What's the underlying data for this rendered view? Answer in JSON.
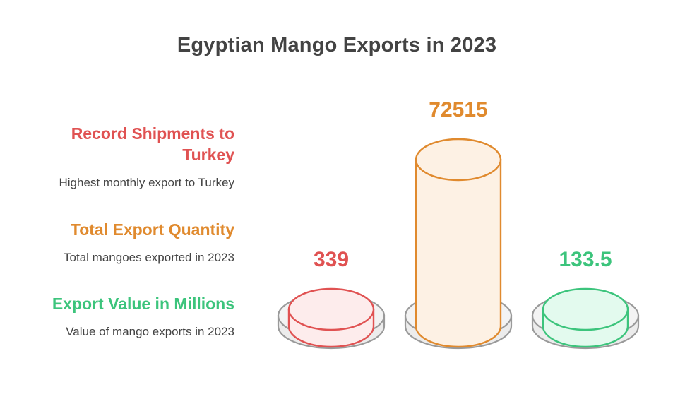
{
  "chart_data": {
    "type": "bar",
    "title": "Egyptian Mango Exports in 2023",
    "categories": [
      "Record Shipments to Turkey",
      "Total Export Quantity",
      "Export Value in Millions"
    ],
    "descriptions": [
      "Highest monthly export to Turkey",
      "Total mangoes exported in 2023",
      "Value of mango exports in 2023"
    ],
    "values": [
      339,
      72515,
      133.5
    ],
    "value_labels": [
      "339",
      "72515",
      "133.5"
    ],
    "colors": [
      "#e05252",
      "#e08a2e",
      "#3cc47c"
    ],
    "fills": [
      "#fdecec",
      "#fdf1e4",
      "#e3faee"
    ]
  }
}
